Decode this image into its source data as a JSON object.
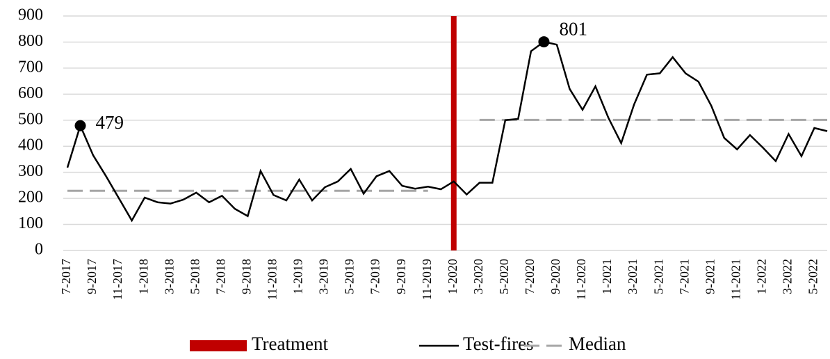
{
  "chart_data": {
    "type": "line",
    "categories": [
      "7-2017",
      null,
      "9-2017",
      null,
      "11-2017",
      null,
      "1-2018",
      null,
      "3-2018",
      null,
      "5-2018",
      null,
      "7-2018",
      null,
      "9-2018",
      null,
      "11-2018",
      null,
      "1-2019",
      null,
      "3-2019",
      null,
      "5-2019",
      null,
      "7-2019",
      null,
      "9-2019",
      null,
      "11-2019",
      null,
      "1-2020",
      null,
      "3-2020",
      null,
      "5-2020",
      null,
      "7-2020",
      null,
      "9-2020",
      null,
      "11-2020",
      null,
      "1-2021",
      null,
      "3-2021",
      null,
      "5-2021",
      null,
      "7-2021",
      null,
      "9-2021",
      null,
      "11-2021",
      null,
      "1-2022",
      null,
      "3-2022",
      null,
      "5-2022",
      null
    ],
    "series": [
      {
        "name": "Test-fires",
        "color": "#000000",
        "values": [
          318,
          479,
          365,
          285,
          200,
          115,
          203,
          185,
          180,
          195,
          222,
          185,
          210,
          160,
          132,
          305,
          213,
          192,
          272,
          192,
          243,
          265,
          313,
          218,
          285,
          305,
          248,
          237,
          245,
          235,
          265,
          215,
          260,
          260,
          500,
          505,
          765,
          801,
          790,
          620,
          540,
          630,
          510,
          412,
          560,
          675,
          680,
          742,
          680,
          648,
          555,
          432,
          388,
          443,
          395,
          343,
          447,
          362,
          470,
          458
        ],
        "value_labels": [
          null,
          "479",
          null,
          null,
          null,
          null,
          null,
          null,
          null,
          null,
          null,
          null,
          null,
          null,
          null,
          null,
          null,
          null,
          null,
          null,
          null,
          null,
          null,
          null,
          null,
          null,
          null,
          null,
          null,
          null,
          null,
          null,
          null,
          null,
          null,
          null,
          null,
          "801",
          null,
          null,
          null,
          null,
          null,
          null,
          null,
          null,
          null,
          null,
          null,
          null,
          null,
          null,
          null,
          null,
          null,
          null,
          null,
          null,
          null,
          null
        ]
      },
      {
        "name": "Median",
        "color": "#a6a6a6",
        "dashed": true,
        "values": [
          229,
          229,
          229,
          229,
          229,
          229,
          229,
          229,
          229,
          229,
          229,
          229,
          229,
          229,
          229,
          229,
          229,
          229,
          229,
          229,
          229,
          229,
          229,
          229,
          229,
          229,
          229,
          229,
          229,
          null,
          null,
          null,
          501,
          501,
          501,
          501,
          501,
          501,
          501,
          501,
          501,
          501,
          501,
          501,
          501,
          501,
          501,
          501,
          501,
          501,
          501,
          501,
          501,
          501,
          501,
          501,
          501,
          501,
          501,
          501
        ]
      }
    ],
    "treatment": {
      "name": "Treatment",
      "color": "#c00000",
      "x": "1-2020"
    },
    "ylim": [
      0,
      900
    ],
    "yticks": [
      0,
      100,
      200,
      300,
      400,
      500,
      600,
      700,
      800,
      900
    ],
    "grid": true,
    "legend": "bottom"
  }
}
